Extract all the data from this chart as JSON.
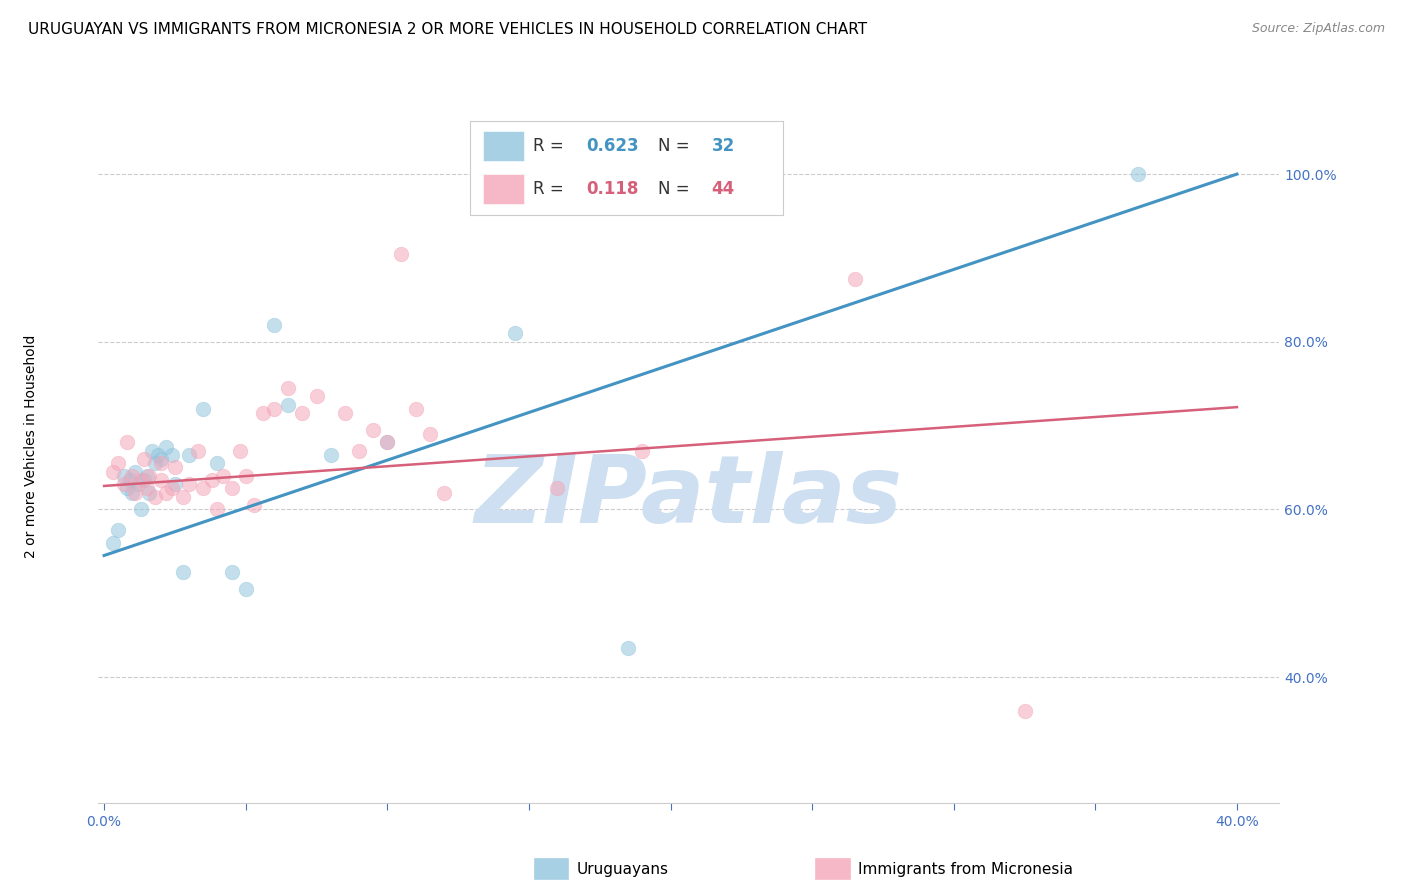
{
  "title": "URUGUAYAN VS IMMIGRANTS FROM MICRONESIA 2 OR MORE VEHICLES IN HOUSEHOLD CORRELATION CHART",
  "source": "Source: ZipAtlas.com",
  "ylabel": "2 or more Vehicles in Household",
  "xlim": [
    -0.002,
    0.415
  ],
  "ylim": [
    0.25,
    1.08
  ],
  "xticks": [
    0.0,
    0.05,
    0.1,
    0.15,
    0.2,
    0.25,
    0.3,
    0.35,
    0.4
  ],
  "xtick_labels": [
    "0.0%",
    "",
    "",
    "",
    "",
    "",
    "",
    "",
    "40.0%"
  ],
  "yticks": [
    0.4,
    0.6,
    0.8,
    1.0
  ],
  "ytick_labels": [
    "40.0%",
    "60.0%",
    "80.0%",
    "100.0%"
  ],
  "blue_R": 0.623,
  "blue_N": 32,
  "pink_R": 0.118,
  "pink_N": 44,
  "blue_color": "#92c5de",
  "pink_color": "#f4a6b8",
  "blue_line_color": "#4393c3",
  "pink_line_color": "#d6607a",
  "blue_label": "Uruguayans",
  "pink_label": "Immigrants from Micronesia",
  "watermark": "ZIPatlas",
  "watermark_color": "#cddff0",
  "title_fontsize": 11,
  "tick_fontsize": 10,
  "tick_color": "#4472c4",
  "blue_scatter_x": [
    0.003,
    0.005,
    0.007,
    0.008,
    0.009,
    0.01,
    0.011,
    0.012,
    0.013,
    0.014,
    0.015,
    0.016,
    0.017,
    0.018,
    0.019,
    0.02,
    0.022,
    0.024,
    0.025,
    0.028,
    0.03,
    0.035,
    0.04,
    0.045,
    0.05,
    0.06,
    0.065,
    0.08,
    0.1,
    0.145,
    0.185,
    0.365
  ],
  "blue_scatter_y": [
    0.56,
    0.575,
    0.64,
    0.625,
    0.635,
    0.62,
    0.645,
    0.63,
    0.6,
    0.635,
    0.64,
    0.62,
    0.67,
    0.655,
    0.665,
    0.66,
    0.675,
    0.665,
    0.63,
    0.525,
    0.665,
    0.72,
    0.655,
    0.525,
    0.505,
    0.82,
    0.725,
    0.665,
    0.68,
    0.81,
    0.435,
    1.0
  ],
  "pink_scatter_x": [
    0.003,
    0.005,
    0.007,
    0.008,
    0.01,
    0.011,
    0.013,
    0.014,
    0.015,
    0.016,
    0.018,
    0.02,
    0.02,
    0.022,
    0.024,
    0.025,
    0.028,
    0.03,
    0.033,
    0.035,
    0.038,
    0.04,
    0.042,
    0.045,
    0.048,
    0.05,
    0.053,
    0.056,
    0.06,
    0.065,
    0.07,
    0.075,
    0.085,
    0.09,
    0.095,
    0.1,
    0.105,
    0.11,
    0.115,
    0.12,
    0.16,
    0.19,
    0.265,
    0.325
  ],
  "pink_scatter_y": [
    0.645,
    0.655,
    0.63,
    0.68,
    0.64,
    0.62,
    0.635,
    0.66,
    0.625,
    0.64,
    0.615,
    0.635,
    0.655,
    0.62,
    0.625,
    0.65,
    0.615,
    0.63,
    0.67,
    0.625,
    0.635,
    0.6,
    0.64,
    0.625,
    0.67,
    0.64,
    0.605,
    0.715,
    0.72,
    0.745,
    0.715,
    0.735,
    0.715,
    0.67,
    0.695,
    0.68,
    0.905,
    0.72,
    0.69,
    0.62,
    0.625,
    0.67,
    0.875,
    0.36
  ],
  "blue_trend_x": [
    0.0,
    0.4
  ],
  "blue_trend_y": [
    0.545,
    1.0
  ],
  "pink_trend_x": [
    0.0,
    0.4
  ],
  "pink_trend_y": [
    0.628,
    0.722
  ],
  "grid_color": "#cccccc",
  "bg_color": "#ffffff",
  "dot_size": 110,
  "dot_alpha": 0.55
}
